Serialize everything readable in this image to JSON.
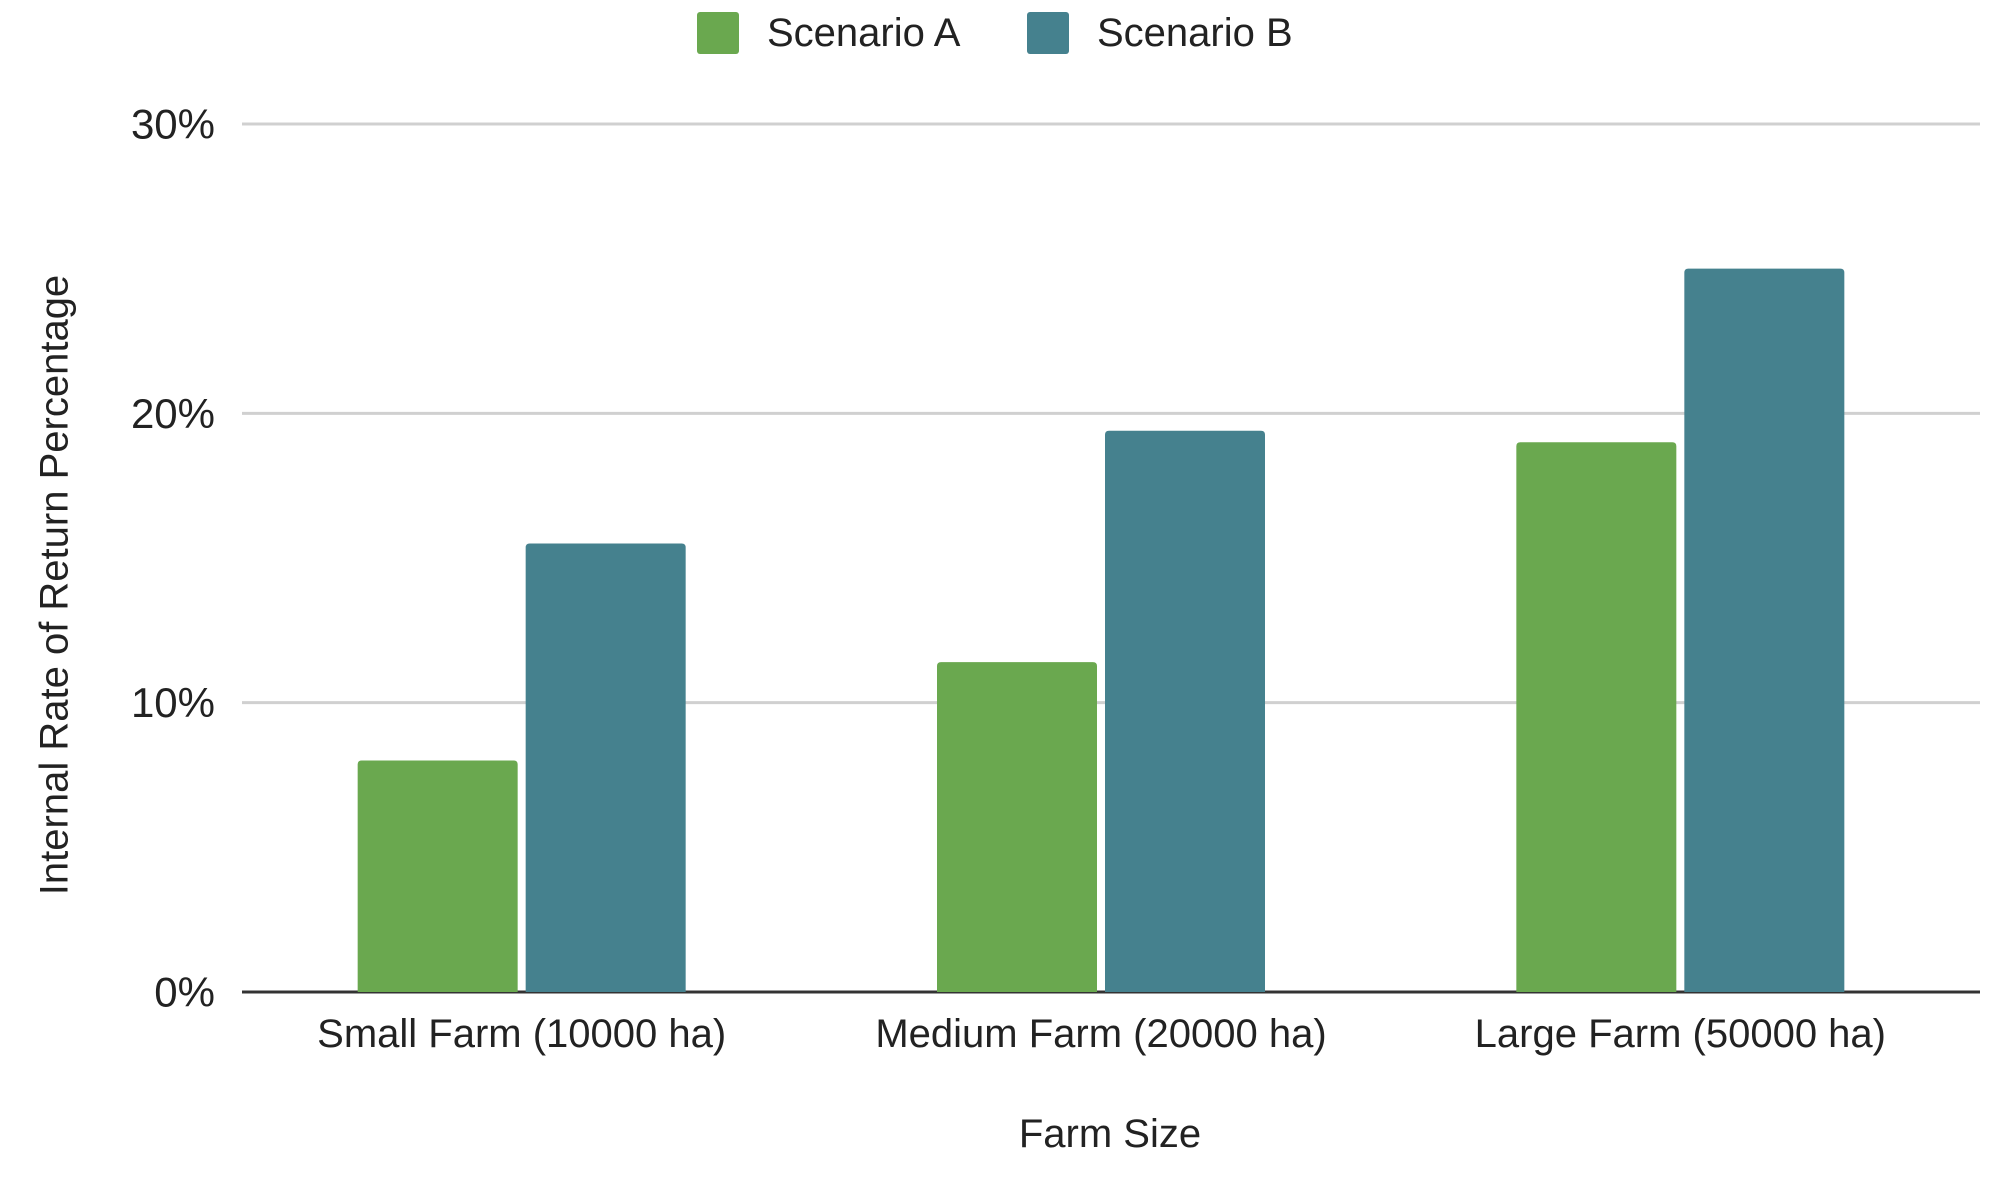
{
  "chart_data": {
    "type": "bar",
    "categories": [
      "Small Farm (10000 ha)",
      "Medium Farm (20000 ha)",
      "Large Farm (50000 ha)"
    ],
    "series": [
      {
        "name": "Scenario A",
        "color": "#6aa84f",
        "values": [
          8.0,
          11.4,
          19.0
        ]
      },
      {
        "name": "Scenario B",
        "color": "#45818e",
        "values": [
          15.5,
          19.4,
          25.0
        ]
      }
    ],
    "title": "",
    "xlabel": "Farm Size",
    "ylabel": "Internal Rate of Return Percentage",
    "ylim": [
      0,
      30
    ],
    "yticks": [
      0,
      10,
      20,
      30
    ],
    "ytick_labels": [
      "0%",
      "10%",
      "20%",
      "30%"
    ],
    "grid": true,
    "legend_position": "top-center"
  }
}
